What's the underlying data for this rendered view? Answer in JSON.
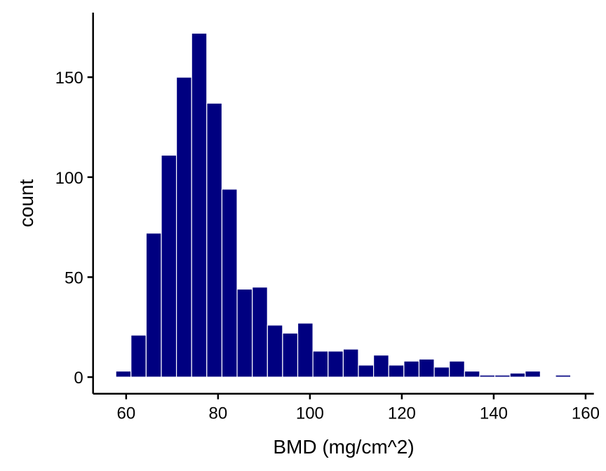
{
  "chart_data": {
    "type": "bar",
    "subtype": "histogram",
    "title": "",
    "xlabel": "BMD (mg/cm^2)",
    "ylabel": "count",
    "bin_centers": [
      59.4,
      62.7,
      66.0,
      69.3,
      72.6,
      75.9,
      79.2,
      82.5,
      85.8,
      89.1,
      92.4,
      95.7,
      99.0,
      102.3,
      105.6,
      108.9,
      112.2,
      115.5,
      118.8,
      122.1,
      125.4,
      128.7,
      132.0,
      135.3,
      138.6,
      141.9,
      145.2,
      148.5,
      151.8,
      155.1
    ],
    "bin_width": 3.3,
    "values": [
      3,
      21,
      72,
      111,
      150,
      172,
      137,
      94,
      44,
      45,
      26,
      22,
      27,
      13,
      13,
      14,
      6,
      11,
      6,
      8,
      9,
      5,
      8,
      3,
      1,
      1,
      2,
      3,
      0,
      1
    ],
    "xlim": [
      52.8,
      161.8
    ],
    "ylim": [
      -8.3,
      182.3
    ],
    "x_ticks": [
      "60",
      "80",
      "100",
      "120",
      "140",
      "160"
    ],
    "y_ticks": [
      "0",
      "50",
      "100",
      "150"
    ],
    "grid": false,
    "legend": "none",
    "colors": {
      "fill": "#000080",
      "outline": "#ffffff",
      "axis": "#000000"
    }
  }
}
